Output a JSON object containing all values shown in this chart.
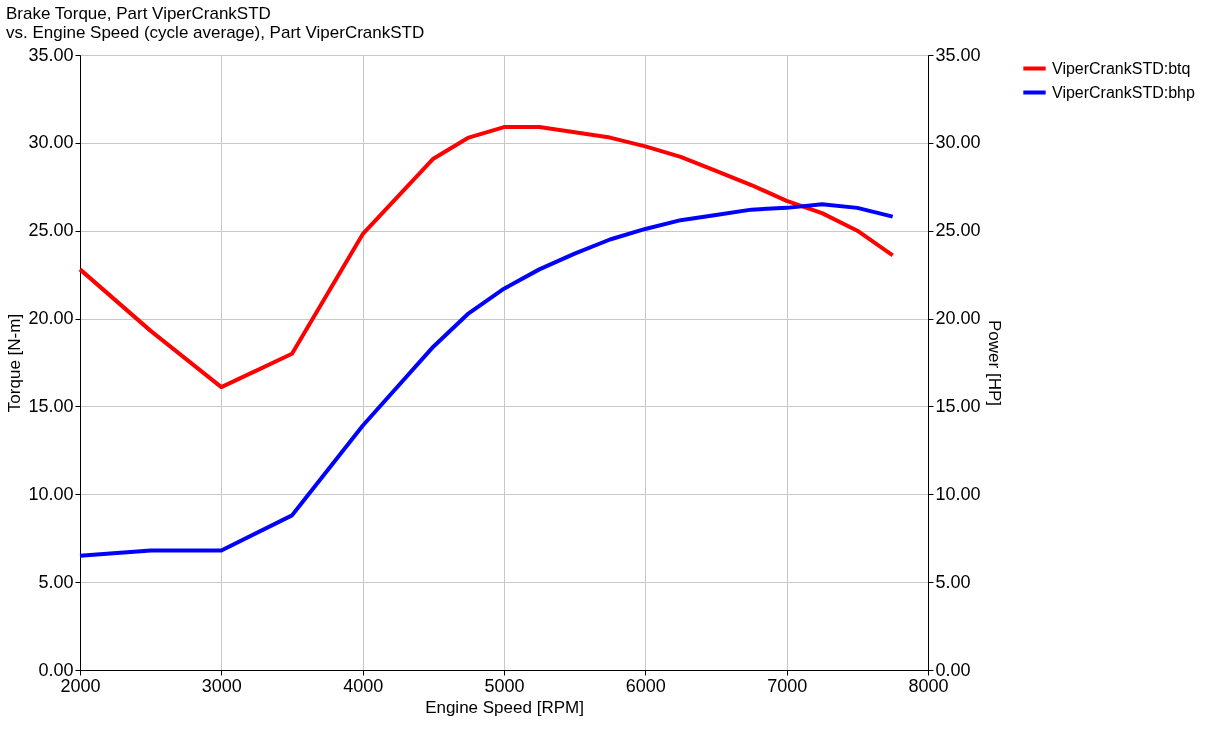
{
  "chart_data": {
    "type": "line",
    "title": "Brake Torque, Part ViperCrankSTD\nvs. Engine Speed (cycle average), Part ViperCrankSTD",
    "xlabel": "Engine Speed [RPM]",
    "ylabel": "Torque [N-m]",
    "y2label": "Power [HP]",
    "x": [
      2000,
      2500,
      3000,
      3500,
      4000,
      4500,
      4750,
      5000,
      5250,
      5500,
      5750,
      6000,
      6250,
      6500,
      6750,
      7000,
      7250,
      7500,
      7750
    ],
    "series": [
      {
        "name": "ViperCrankSTD:btq",
        "color": "#ff0000",
        "values": [
          22.8,
          19.3,
          16.1,
          18.0,
          24.8,
          29.1,
          30.3,
          30.9,
          30.9,
          30.6,
          30.3,
          29.8,
          29.2,
          28.4,
          27.6,
          26.7,
          26.0,
          25.0,
          23.6
        ]
      },
      {
        "name": "ViperCrankSTD:bhp",
        "color": "#0000ff",
        "axis": "y2",
        "values": [
          6.5,
          6.8,
          6.8,
          8.8,
          13.9,
          18.4,
          20.3,
          21.7,
          22.8,
          23.7,
          24.5,
          25.1,
          25.6,
          25.9,
          26.2,
          26.3,
          26.5,
          26.3,
          25.8
        ]
      }
    ],
    "xlim": [
      2000,
      8000
    ],
    "xticks": [
      2000,
      3000,
      4000,
      5000,
      6000,
      7000,
      8000
    ],
    "ylim": [
      0,
      35
    ],
    "yticks": [
      {
        "value": 0,
        "label": "0.00"
      },
      {
        "value": 5,
        "label": "5.00"
      },
      {
        "value": 10,
        "label": "10.00"
      },
      {
        "value": 15,
        "label": "15.00"
      },
      {
        "value": 20,
        "label": "20.00"
      },
      {
        "value": 25,
        "label": "25.00"
      },
      {
        "value": 30,
        "label": "30.00"
      },
      {
        "value": 35,
        "label": "35.00"
      }
    ],
    "y2lim": [
      0,
      35
    ],
    "y2ticks": [
      {
        "value": 0,
        "label": "0.00"
      },
      {
        "value": 5,
        "label": "5.00"
      },
      {
        "value": 10,
        "label": "10.00"
      },
      {
        "value": 15,
        "label": "15.00"
      },
      {
        "value": 20,
        "label": "20.00"
      },
      {
        "value": 25,
        "label": "25.00"
      },
      {
        "value": 30,
        "label": "30.00"
      },
      {
        "value": 35,
        "label": "35.00"
      }
    ],
    "grid": true,
    "legend": "top right",
    "line_style": "solid",
    "marker": "none"
  }
}
